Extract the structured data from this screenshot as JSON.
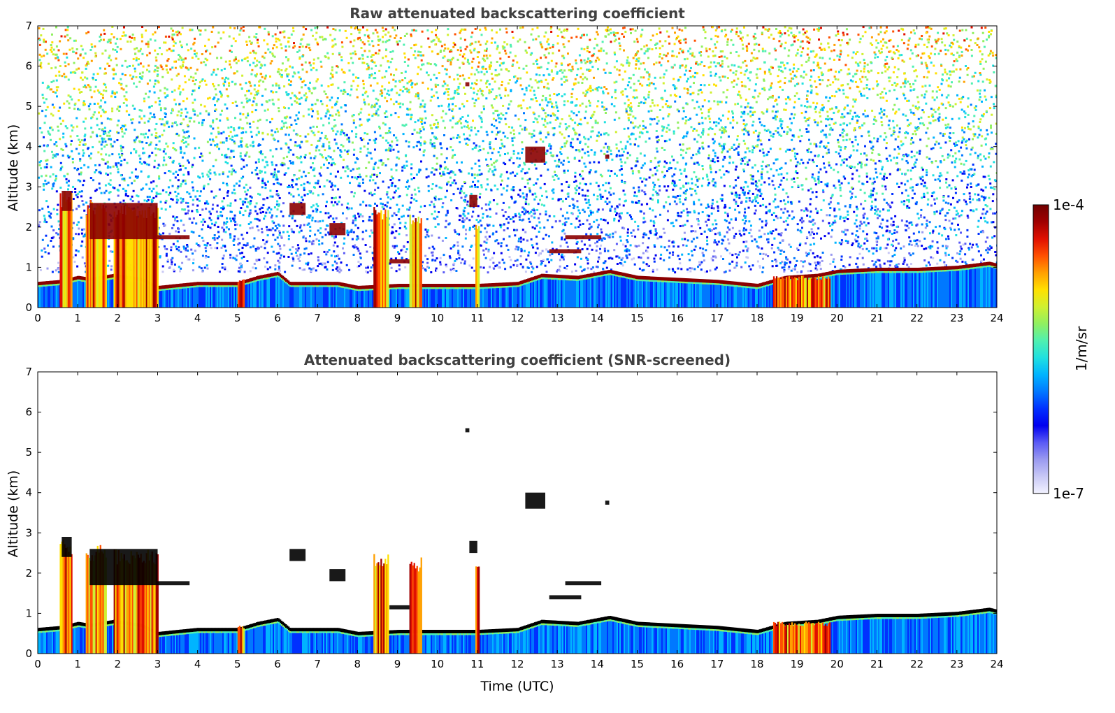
{
  "colors": {
    "colormap": [
      "#f2f2ff",
      "#c8c8f5",
      "#9a9af0",
      "#5a5af5",
      "#0000f0",
      "#0030ff",
      "#0078ff",
      "#00b4ff",
      "#20e0e0",
      "#50f0b0",
      "#90f060",
      "#d0f030",
      "#ffe000",
      "#ffa000",
      "#ff5000",
      "#e01000",
      "#a00000",
      "#700000"
    ],
    "cloud_core": "#8b0000",
    "screened_core": "#000000"
  },
  "colorbar": {
    "max_label": "1e-4",
    "min_label": "1e-7",
    "unit_label": "1/m/sr",
    "scale": "log"
  },
  "chart_data": [
    {
      "type": "heatmap",
      "title": "Raw attenuated backscattering coefficient",
      "xlabel": "",
      "ylabel": "Altitude (km)",
      "xlim": [
        0,
        24
      ],
      "ylim": [
        0,
        7
      ],
      "xticks": [
        "0",
        "1",
        "2",
        "3",
        "4",
        "5",
        "6",
        "7",
        "8",
        "9",
        "10",
        "11",
        "12",
        "13",
        "14",
        "15",
        "16",
        "17",
        "18",
        "19",
        "20",
        "21",
        "22",
        "23",
        "24"
      ],
      "yticks": [
        "0",
        "1",
        "2",
        "3",
        "4",
        "5",
        "6",
        "7"
      ],
      "screened": false
    },
    {
      "type": "heatmap",
      "title": "Attenuated backscattering coefficient (SNR-screened)",
      "xlabel": "Time (UTC)",
      "ylabel": "Altitude (km)",
      "xlim": [
        0,
        24
      ],
      "ylim": [
        0,
        7
      ],
      "xticks": [
        "0",
        "1",
        "2",
        "3",
        "4",
        "5",
        "6",
        "7",
        "8",
        "9",
        "10",
        "11",
        "12",
        "13",
        "14",
        "15",
        "16",
        "17",
        "18",
        "19",
        "20",
        "21",
        "22",
        "23",
        "24"
      ],
      "yticks": [
        "0",
        "1",
        "2",
        "3",
        "4",
        "5",
        "6",
        "7"
      ],
      "screened": true
    }
  ],
  "features": {
    "boundary_layer_top_km": [
      [
        0,
        0.6
      ],
      [
        0.6,
        0.65
      ],
      [
        1.0,
        0.75
      ],
      [
        1.3,
        0.7
      ],
      [
        1.9,
        0.8
      ],
      [
        2.6,
        0.7
      ],
      [
        3.0,
        0.5
      ],
      [
        4.0,
        0.6
      ],
      [
        5.0,
        0.6
      ],
      [
        5.5,
        0.75
      ],
      [
        6.0,
        0.85
      ],
      [
        6.3,
        0.6
      ],
      [
        7.5,
        0.6
      ],
      [
        8.0,
        0.5
      ],
      [
        9.0,
        0.55
      ],
      [
        10.0,
        0.55
      ],
      [
        11.0,
        0.55
      ],
      [
        12.0,
        0.6
      ],
      [
        12.6,
        0.8
      ],
      [
        13.5,
        0.75
      ],
      [
        14.3,
        0.9
      ],
      [
        15.0,
        0.75
      ],
      [
        17.0,
        0.65
      ],
      [
        18.0,
        0.55
      ],
      [
        18.7,
        0.75
      ],
      [
        19.5,
        0.8
      ],
      [
        20.0,
        0.9
      ],
      [
        21.0,
        0.95
      ],
      [
        22.0,
        0.95
      ],
      [
        23.0,
        1.0
      ],
      [
        23.8,
        1.1
      ],
      [
        24.0,
        1.05
      ]
    ],
    "cloud_layers": [
      {
        "t": [
          0.6,
          0.85
        ],
        "alt": [
          2.4,
          2.9
        ]
      },
      {
        "t": [
          1.3,
          3.0
        ],
        "alt": [
          1.7,
          2.6
        ]
      },
      {
        "t": [
          3.0,
          3.8
        ],
        "alt": [
          1.7,
          1.8
        ]
      },
      {
        "t": [
          6.3,
          6.7
        ],
        "alt": [
          2.3,
          2.6
        ]
      },
      {
        "t": [
          7.3,
          7.7
        ],
        "alt": [
          1.8,
          2.1
        ]
      },
      {
        "t": [
          8.8,
          9.3
        ],
        "alt": [
          1.1,
          1.2
        ]
      },
      {
        "t": [
          10.8,
          11.0
        ],
        "alt": [
          2.5,
          2.8
        ]
      },
      {
        "t": [
          12.2,
          12.7
        ],
        "alt": [
          3.6,
          4.0
        ]
      },
      {
        "t": [
          12.8,
          13.6
        ],
        "alt": [
          1.35,
          1.45
        ]
      },
      {
        "t": [
          13.2,
          14.1
        ],
        "alt": [
          1.7,
          1.8
        ]
      },
      {
        "t": [
          14.2,
          14.3
        ],
        "alt": [
          3.7,
          3.8
        ]
      },
      {
        "t": [
          10.7,
          10.8
        ],
        "alt": [
          5.5,
          5.6
        ]
      }
    ],
    "precip_columns": [
      {
        "t": [
          0.55,
          0.85
        ],
        "top_km": 2.9
      },
      {
        "t": [
          1.2,
          1.7
        ],
        "top_km": 2.7
      },
      {
        "t": [
          1.9,
          3.0
        ],
        "top_km": 2.6
      },
      {
        "t": [
          8.4,
          8.75
        ],
        "top_km": 2.5
      },
      {
        "t": [
          9.3,
          9.6
        ],
        "top_km": 2.4
      },
      {
        "t": [
          10.95,
          11.05
        ],
        "top_km": 2.2
      },
      {
        "t": [
          5.0,
          5.15
        ],
        "top_km": 0.7
      },
      {
        "t": [
          18.4,
          19.8
        ],
        "top_km": 0.8
      }
    ]
  }
}
